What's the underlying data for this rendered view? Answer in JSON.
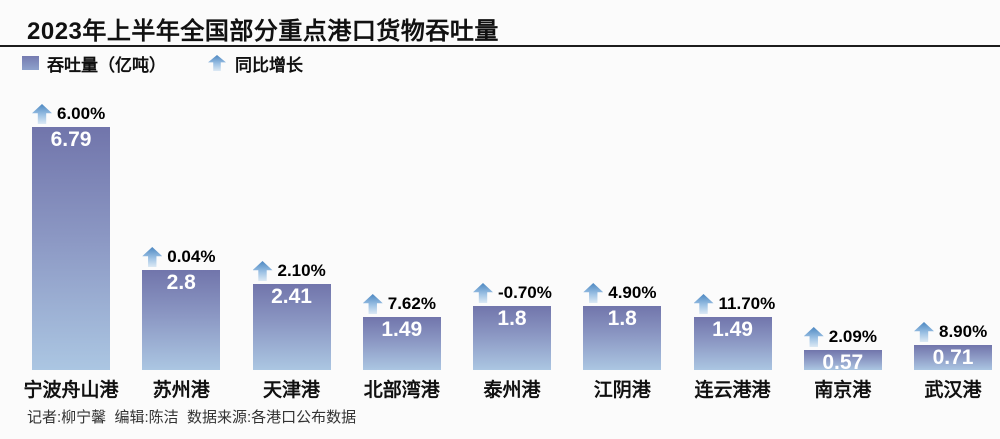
{
  "header": {
    "title": "2023年上半年全国部分重点港口货物吞吐量"
  },
  "legend": {
    "throughput_label": "吞吐量（亿吨）",
    "growth_label": "同比增长",
    "swatch_icon": "bar-swatch",
    "arrow_icon": "up-arrow"
  },
  "chart_data": {
    "type": "bar",
    "title": "2023年上半年全国部分重点港口货物吞吐量",
    "unit": "亿吨",
    "ylim": [
      0,
      7
    ],
    "grid": false,
    "legend_position": "top-left",
    "categories": [
      "宁波舟山港",
      "苏州港",
      "天津港",
      "北部湾港",
      "泰州港",
      "江阴港",
      "连云港港",
      "南京港",
      "武汉港"
    ],
    "series": [
      {
        "name": "吞吐量（亿吨）",
        "values": [
          6.79,
          2.8,
          2.41,
          1.49,
          1.8,
          1.8,
          1.49,
          0.57,
          0.71
        ]
      },
      {
        "name": "同比增长",
        "values": [
          "6.00%",
          "0.04%",
          "2.10%",
          "7.62%",
          "-0.70%",
          "4.90%",
          "11.70%",
          "2.09%",
          "8.90%"
        ]
      }
    ],
    "ports": [
      {
        "name": "宁波舟山港",
        "throughput": 6.79,
        "throughput_label": "6.79",
        "growth": "6.00%"
      },
      {
        "name": "苏州港",
        "throughput": 2.8,
        "throughput_label": "2.8",
        "growth": "0.04%"
      },
      {
        "name": "天津港",
        "throughput": 2.41,
        "throughput_label": "2.41",
        "growth": "2.10%"
      },
      {
        "name": "北部湾港",
        "throughput": 1.49,
        "throughput_label": "1.49",
        "growth": "7.62%"
      },
      {
        "name": "泰州港",
        "throughput": 1.8,
        "throughput_label": "1.8",
        "growth": "-0.70%"
      },
      {
        "name": "江阴港",
        "throughput": 1.8,
        "throughput_label": "1.8",
        "growth": "4.90%"
      },
      {
        "name": "连云港港",
        "throughput": 1.49,
        "throughput_label": "1.49",
        "growth": "11.70%"
      },
      {
        "name": "南京港",
        "throughput": 0.57,
        "throughput_label": "0.57",
        "growth": "2.09%"
      },
      {
        "name": "武汉港",
        "throughput": 0.71,
        "throughput_label": "0.71",
        "growth": "8.90%"
      }
    ]
  },
  "footer": {
    "credits": "记者:柳宁馨  编辑:陈洁  数据来源:各港口公布数据"
  },
  "colors": {
    "background": "#fbfbfb",
    "bar_top": "#7175ab",
    "bar_bottom": "#abc6e2",
    "arrow_top": "#4c87c1",
    "arrow_bottom": "#dce9f4",
    "title_rule": "#1c1c1c",
    "value_text": "#ffffff",
    "text": "#111111"
  }
}
